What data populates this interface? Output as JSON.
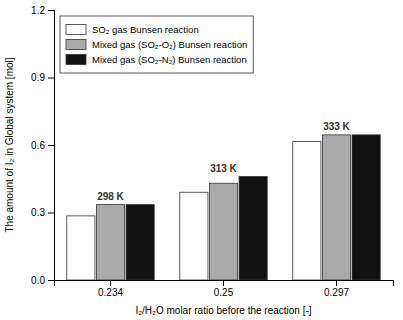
{
  "chart_data": {
    "type": "bar",
    "categories": [
      "0.234",
      "0.25",
      "0.297"
    ],
    "series": [
      {
        "name": "SO₂ gas Bunsen reaction",
        "color": "white",
        "values": [
          0.285,
          0.39,
          0.615
        ]
      },
      {
        "name": "Mixed gas (SO₂-O₂) Bunsen reaction",
        "color": "#aaaaaa",
        "values": [
          0.335,
          0.43,
          0.645
        ]
      },
      {
        "name": "Mixed gas (SO₂-N₂) Bunsen reaction",
        "color": "#111111",
        "values": [
          0.335,
          0.46,
          0.645
        ]
      }
    ],
    "annotations": [
      "298 K",
      "313 K",
      "333 K"
    ],
    "y_label": "The amount of I₂ in Global system [mol]",
    "x_label": "I₂/H₂O molar ratio before the reaction [-]",
    "ylim": [
      0.0,
      1.2
    ],
    "yticks": [
      {
        "value": 0.0,
        "label": "0.0"
      },
      0.3,
      0.6,
      0.9,
      1.2
    ],
    "legend": "upper left",
    "grid": false
  }
}
